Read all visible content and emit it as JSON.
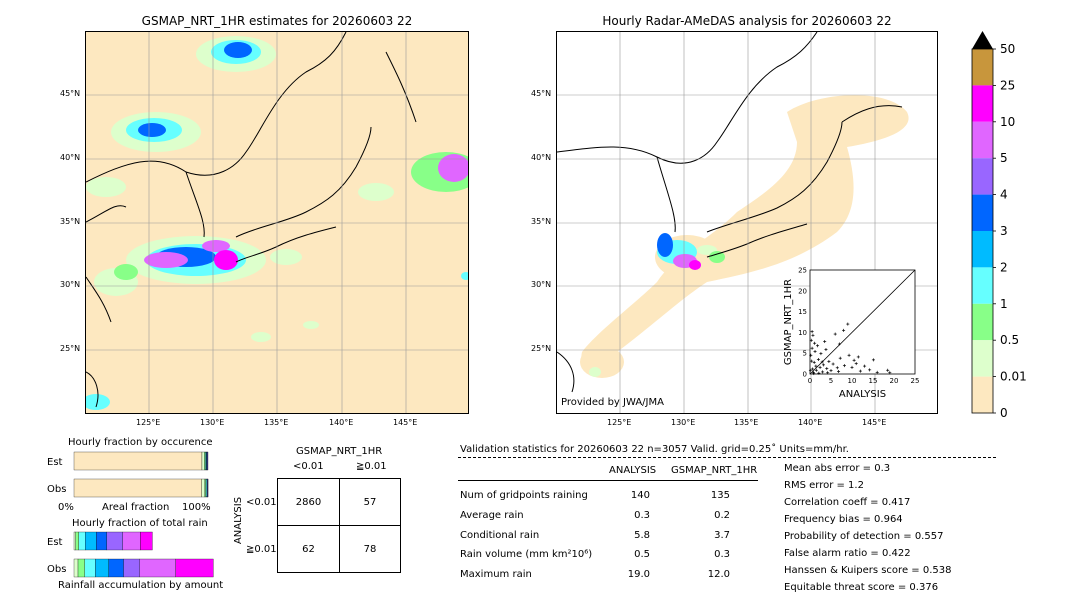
{
  "left_map": {
    "title": "GSMAP_NRT_1HR estimates for 20260603 22",
    "lat_labels": [
      "45°N",
      "40°N",
      "35°N",
      "30°N",
      "25°N"
    ],
    "lon_labels": [
      "125°E",
      "130°E",
      "135°E",
      "140°E",
      "145°E"
    ]
  },
  "right_map": {
    "title": "Hourly Radar-AMeDAS analysis for 20260603 22",
    "lat_labels": [
      "45°N",
      "40°N",
      "35°N",
      "30°N",
      "25°N"
    ],
    "lon_labels": [
      "125°E",
      "130°E",
      "135°E",
      "140°E",
      "145°E"
    ],
    "credit": "Provided by JWA/JMA"
  },
  "colorbar": {
    "labels": [
      "50",
      "25",
      "10",
      "5",
      "4",
      "3",
      "2",
      "1",
      "0.5",
      "0.01",
      "0"
    ],
    "colors": [
      "#c8963c",
      "#ff00ff",
      "#e066ff",
      "#9966ff",
      "#0066ff",
      "#00bbff",
      "#66ffff",
      "#88ff88",
      "#ddffcc",
      "#fde8c0"
    ]
  },
  "chart_data": [
    {
      "type": "scatter",
      "title": "",
      "xlabel": "ANALYSIS",
      "ylabel": "GSMAP_NRT_1HR",
      "xlim": [
        0,
        25
      ],
      "ylim": [
        0,
        25
      ],
      "x_ticks": [
        "0",
        "5",
        "10",
        "15",
        "20",
        "25"
      ],
      "y_ticks": [
        "0",
        "5",
        "10",
        "15",
        "20",
        "25"
      ],
      "diagonal": true,
      "points": [
        [
          0.2,
          4.5
        ],
        [
          0.4,
          3.1
        ],
        [
          0.5,
          6.2
        ],
        [
          0.6,
          1.2
        ],
        [
          0.8,
          0.4
        ],
        [
          1.0,
          2.8
        ],
        [
          1.2,
          5.4
        ],
        [
          0.3,
          8.1
        ],
        [
          1.5,
          0.9
        ],
        [
          2.0,
          3.5
        ],
        [
          2.4,
          1.6
        ],
        [
          0.7,
          9.3
        ],
        [
          3.0,
          0.5
        ],
        [
          3.2,
          2.2
        ],
        [
          1.8,
          6.8
        ],
        [
          2.6,
          4.9
        ],
        [
          4.0,
          1.3
        ],
        [
          4.5,
          3.0
        ],
        [
          3.8,
          5.9
        ],
        [
          5.0,
          0.8
        ],
        [
          5.5,
          2.4
        ],
        [
          0.5,
          10.2
        ],
        [
          1.1,
          7.4
        ],
        [
          6.0,
          9.6
        ],
        [
          6.5,
          1.5
        ],
        [
          7.0,
          7.2
        ],
        [
          7.2,
          3.8
        ],
        [
          8.0,
          10.5
        ],
        [
          8.2,
          2.0
        ],
        [
          9.0,
          12.0
        ],
        [
          9.3,
          4.5
        ],
        [
          10.0,
          1.6
        ],
        [
          10.5,
          3.3
        ],
        [
          11.0,
          2.5
        ],
        [
          11.5,
          4.1
        ],
        [
          12.0,
          0.7
        ],
        [
          13.0,
          1.9
        ],
        [
          14.2,
          1.0
        ],
        [
          15.1,
          3.4
        ],
        [
          16.0,
          0.4
        ],
        [
          18.5,
          0.9
        ],
        [
          19.0,
          0.3
        ],
        [
          2.1,
          0.2
        ],
        [
          0.9,
          0.1
        ],
        [
          4.2,
          0.3
        ],
        [
          6.8,
          0.6
        ],
        [
          3.5,
          7.8
        ],
        [
          2.9,
          2.9
        ],
        [
          1.4,
          1.9
        ],
        [
          0.1,
          0.9
        ]
      ]
    },
    {
      "type": "bar",
      "title": "Hourly fraction by occurence",
      "xlabel": "Areal fraction",
      "x_tick_left": "0%",
      "x_tick_right": "100%",
      "categories": [
        "Est",
        "Obs"
      ],
      "xlim": [
        0,
        1
      ],
      "stacked_fractions": {
        "Est": [
          0.955,
          0.018,
          0.008,
          0.006,
          0.005,
          0.004,
          0.004
        ],
        "Obs": [
          0.954,
          0.021,
          0.009,
          0.006,
          0.004,
          0.003,
          0.003
        ]
      },
      "stack_colors": [
        "#fde8c0",
        "#ddffcc",
        "#88ff88",
        "#66ffff",
        "#00bbff",
        "#0066ff",
        "#9966ff"
      ]
    },
    {
      "type": "bar",
      "title": "Hourly fraction of total rain",
      "xlabel": "Rainfall accumulation by amount",
      "categories": [
        "Est",
        "Obs"
      ],
      "xlim": [
        0,
        1
      ],
      "stacked_fractions": {
        "Est": [
          0.02,
          0.04,
          0.08,
          0.14,
          0.13,
          0.2,
          0.22,
          0.15
        ],
        "Obs": [
          0.03,
          0.05,
          0.08,
          0.1,
          0.11,
          0.12,
          0.27,
          0.28
        ]
      },
      "stack_colors": [
        "#ddffcc",
        "#88ff88",
        "#66ffff",
        "#00bbff",
        "#0066ff",
        "#9966ff",
        "#e066ff",
        "#ff00ff"
      ]
    },
    {
      "type": "table",
      "title": "GSMAP_NRT_1HR",
      "col_headers": [
        "<0.01",
        "≧0.01"
      ],
      "row_axis_label": "ANALYSIS",
      "row_headers": [
        "<0.01",
        "≧0.01"
      ],
      "cells": [
        [
          "2860",
          "57"
        ],
        [
          "62",
          "78"
        ]
      ]
    }
  ],
  "validation": {
    "header": "Validation statistics for 20260603 22  n=3057 Valid. grid=0.25˚ Units=mm/hr.",
    "col_analysis": "ANALYSIS",
    "col_gsmap": "GSMAP_NRT_1HR",
    "rows": [
      {
        "label": "Num of gridpoints raining",
        "analysis": "140",
        "gsmap": "135"
      },
      {
        "label": "Average rain",
        "analysis": "0.3",
        "gsmap": "0.2"
      },
      {
        "label": "Conditional rain",
        "analysis": "5.8",
        "gsmap": "3.7"
      },
      {
        "label": "Rain volume (mm km²10⁶)",
        "analysis": "0.5",
        "gsmap": "0.3"
      },
      {
        "label": "Maximum rain",
        "analysis": "19.0",
        "gsmap": "12.0"
      }
    ],
    "scores": [
      "Mean abs error =    0.3",
      "RMS error =    1.2",
      "Correlation coeff =  0.417",
      "Frequency bias =  0.964",
      "Probability of detection =  0.557",
      "False alarm ratio =  0.422",
      "Hanssen & Kuipers score =  0.538",
      "Equitable threat score =  0.376"
    ]
  }
}
